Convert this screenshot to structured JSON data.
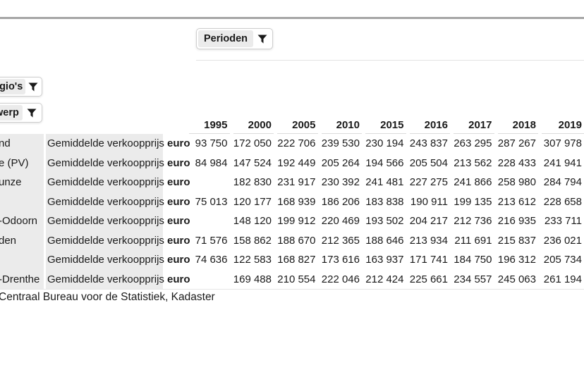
{
  "filters": {
    "perioden": {
      "label": "Perioden"
    },
    "regios": {
      "label": "egio's"
    },
    "onderwerp": {
      "label": "werp"
    }
  },
  "table": {
    "years": [
      "1995",
      "2000",
      "2005",
      "2010",
      "2015",
      "2016",
      "2017",
      "2018",
      "2019"
    ],
    "measure_label": "Gemiddelde verkoopprijs",
    "unit_label": "euro",
    "rows": [
      {
        "region": "nd",
        "values": [
          "93 750",
          "172 050",
          "222 706",
          "239 530",
          "230 194",
          "243 837",
          "263 295",
          "287 267",
          "307 978"
        ]
      },
      {
        "region": "e (PV)",
        "values": [
          "84 984",
          "147 524",
          "192 449",
          "205 264",
          "194 566",
          "205 504",
          "213 562",
          "228 433",
          "241 941"
        ]
      },
      {
        "region": "unze",
        "values": [
          "",
          "182 830",
          "231 917",
          "230 392",
          "241 481",
          "227 275",
          "241 866",
          "258 980",
          "284 794"
        ]
      },
      {
        "region": "",
        "values": [
          "75 013",
          "120 177",
          "168 939",
          "186 206",
          "183 838",
          "190 911",
          "199 135",
          "213 612",
          "228 658"
        ]
      },
      {
        "region": "-Odoorn",
        "values": [
          "",
          "148 120",
          "199 912",
          "220 469",
          "193 502",
          "204 217",
          "212 736",
          "216 935",
          "233 711"
        ]
      },
      {
        "region": "den",
        "values": [
          "71 576",
          "158 862",
          "188 670",
          "212 365",
          "188 646",
          "213 934",
          "211 691",
          "215 837",
          "236 021"
        ]
      },
      {
        "region": "",
        "values": [
          "74 636",
          "122 583",
          "168 827",
          "173 616",
          "163 937",
          "171 741",
          "184 750",
          "196 312",
          "205 734"
        ]
      },
      {
        "region": "-Drenthe",
        "values": [
          "",
          "169 488",
          "210 554",
          "222 046",
          "212 424",
          "225 661",
          "234 557",
          "245 063",
          "261 194"
        ]
      }
    ]
  },
  "source": "Centraal Bureau voor de Statistiek, Kadaster",
  "colors": {
    "cell_gray": "#ebebeb",
    "top_rule": "#a5a5a5",
    "thin_rule": "#e3e3e3",
    "text": "#1a1a1a"
  }
}
